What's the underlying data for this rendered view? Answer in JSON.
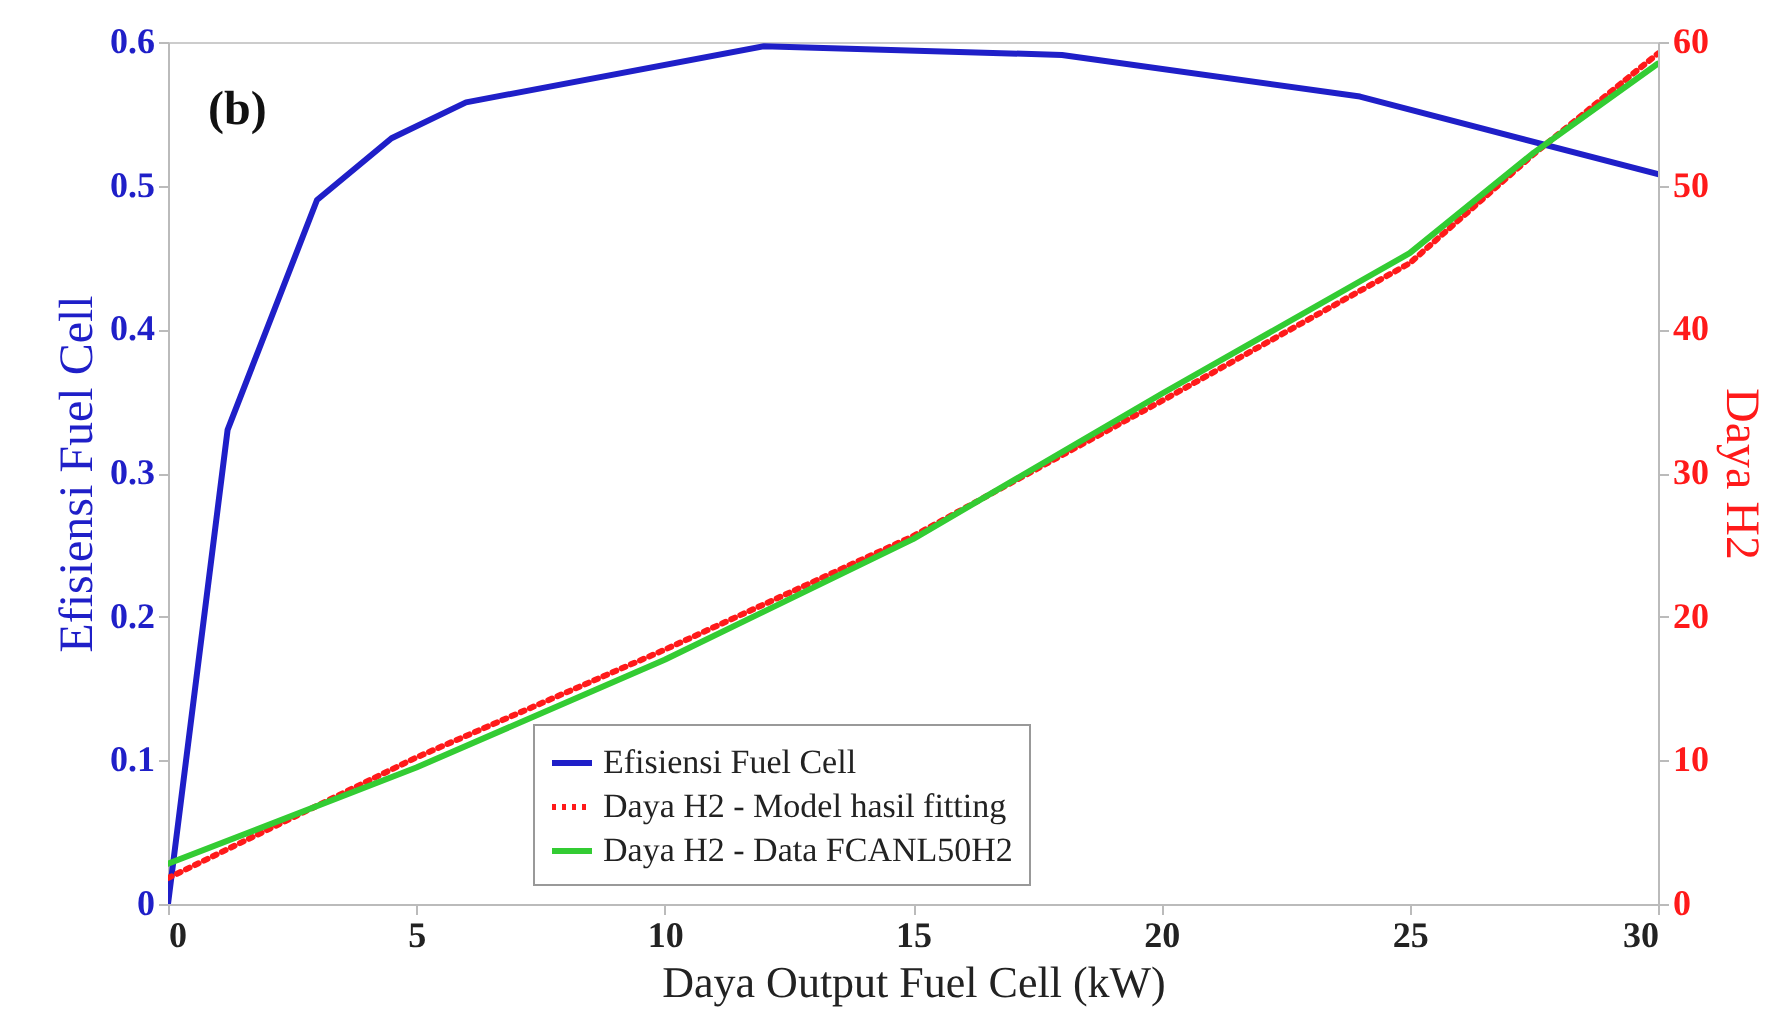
{
  "chart_data": {
    "type": "line",
    "xlabel": "Daya Output Fuel Cell (kW)",
    "ylabel": "Efisiensi Fuel Cell",
    "y2label": "Daya H2",
    "annotations": [
      "(b)"
    ],
    "xlim": [
      0,
      30
    ],
    "xticks": [
      0,
      5,
      10,
      15,
      20,
      25,
      30
    ],
    "ylim": [
      0,
      0.6
    ],
    "yticks": [
      0,
      0.1,
      0.2,
      0.3,
      0.4,
      0.5,
      0.6
    ],
    "y2lim": [
      0,
      60
    ],
    "y2ticks": [
      0,
      10,
      20,
      30,
      40,
      50,
      60
    ],
    "grid": false,
    "legend": "bottom",
    "marker": "none",
    "series": [
      {
        "name": "Efisiensi Fuel Cell",
        "color": "#1f1fc8",
        "line_style": "solid",
        "x": [
          0,
          1.2,
          3,
          4.5,
          6,
          12,
          18,
          24,
          30
        ],
        "values": [
          0,
          0.33,
          0.49,
          0.533,
          0.558,
          0.597,
          0.591,
          0.562,
          0.508
        ]
      },
      {
        "name": "Daya H2 - Model hasil fitting",
        "color": "#ff1a1a",
        "line_style": "dotted",
        "axis": "y2",
        "x": [
          0,
          5,
          10,
          15,
          20,
          25,
          27.5,
          30
        ],
        "values": [
          1.8,
          10.2,
          17.7,
          25.6,
          35,
          44.6,
          52.2,
          59.2
        ]
      },
      {
        "name": "Daya H2 - Data FCANL50H2",
        "color": "#33cc33",
        "line_style": "solid",
        "axis": "y2",
        "x": [
          0,
          5,
          10,
          15,
          20,
          25,
          27.5,
          30
        ],
        "values": [
          2.8,
          9.5,
          17,
          25.4,
          35.5,
          45.3,
          52.3,
          58.5
        ]
      }
    ]
  }
}
